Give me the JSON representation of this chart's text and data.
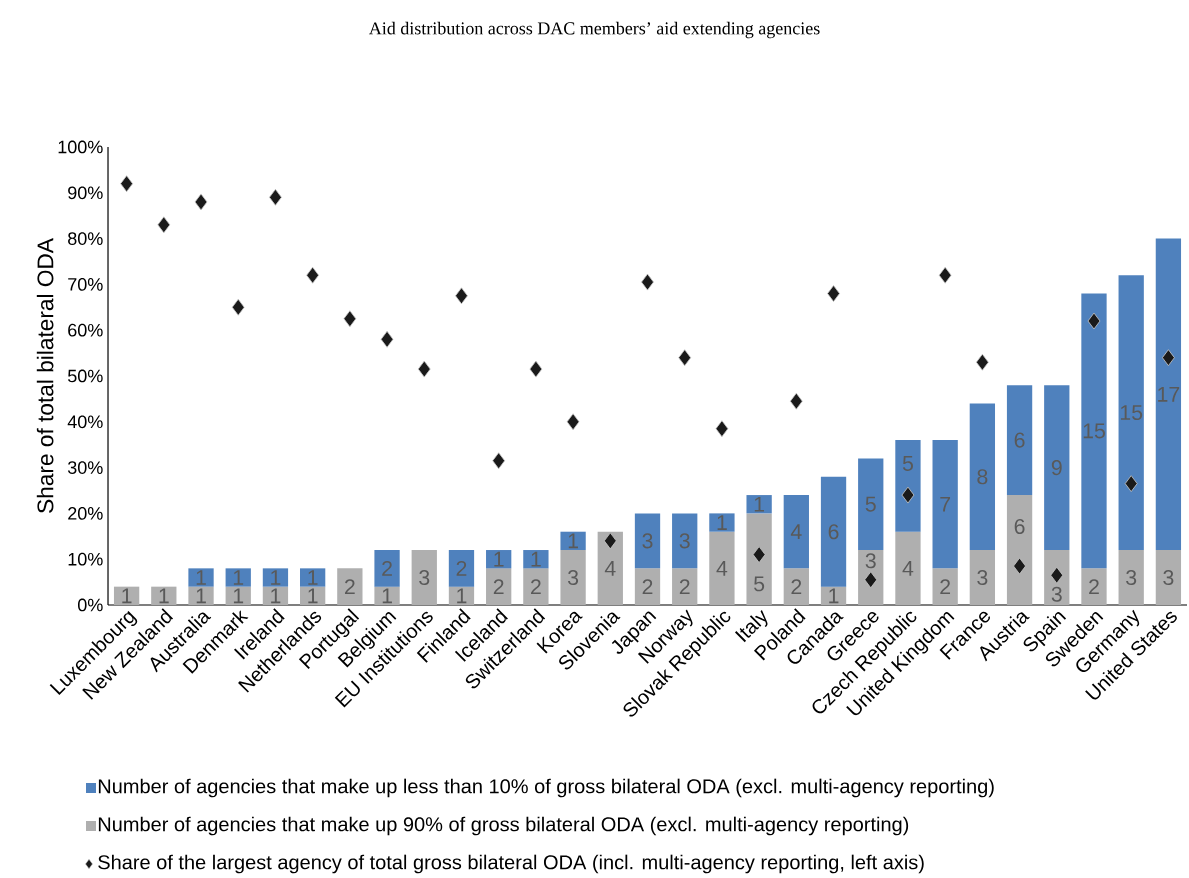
{
  "chart_data": {
    "type": "bar",
    "stacked": true,
    "title": "Aid distribution across DAC members’ aid extending agencies",
    "ylabel": "Share of total bilateral ODA",
    "categories": [
      "Luxembourg",
      "New Zealand",
      "Australia",
      "Denmark",
      "Ireland",
      "Netherlands",
      "Portugal",
      "Belgium",
      "EU Institutions",
      "Finland",
      "Iceland",
      "Switzerland",
      "Korea",
      "Slovenia",
      "Japan",
      "Norway",
      "Slovak Republic",
      "Italy",
      "Poland",
      "Canada",
      "Greece",
      "Czech Republic",
      "United Kingdom",
      "France",
      "Austria",
      "Spain",
      "Sweden",
      "Germany",
      "United States"
    ],
    "ylim": [
      0,
      100
    ],
    "yticks": [
      {
        "value": 0,
        "label": "0%"
      },
      {
        "value": 10,
        "label": "10%"
      },
      {
        "value": 20,
        "label": "20%"
      },
      {
        "value": 30,
        "label": "30%"
      },
      {
        "value": 40,
        "label": "40%"
      },
      {
        "value": 50,
        "label": "50%"
      },
      {
        "value": 60,
        "label": "60%"
      },
      {
        "value": 70,
        "label": "70%"
      },
      {
        "value": 80,
        "label": "80%"
      },
      {
        "value": 90,
        "label": "90%"
      },
      {
        "value": 100,
        "label": "100%"
      }
    ],
    "legend": "bottom",
    "y2lim": [
      0,
      25
    ],
    "series": [
      {
        "name": "Number of agencies that make up 90% of gross bilateral ODA (excl. multi-agency reporting)",
        "color": "#afafaf",
        "axis": "y2",
        "values": [
          1,
          1,
          1,
          1,
          1,
          1,
          2,
          1,
          3,
          1,
          2,
          2,
          3,
          4,
          2,
          2,
          4,
          5,
          2,
          1,
          3,
          4,
          2,
          3,
          6,
          3,
          2,
          3,
          3
        ],
        "value_labels": [
          "1",
          "1",
          "1",
          "1",
          "1",
          "1",
          "2",
          "1",
          "3",
          "1",
          "2",
          "2",
          "3",
          "4",
          "2",
          "2",
          "4",
          "5",
          "2",
          "1",
          "3",
          "4",
          "2",
          "3",
          "6",
          "3",
          "2",
          "3",
          "3"
        ]
      },
      {
        "name": "Number of agencies that make up less than 10% of gross bilateral ODA (excl. multi-agency reporting)",
        "color": "#4f81bd",
        "axis": "y2",
        "values": [
          null,
          null,
          1,
          1,
          1,
          1,
          null,
          2,
          null,
          2,
          1,
          1,
          1,
          null,
          3,
          3,
          1,
          1,
          4,
          6,
          5,
          5,
          7,
          8,
          6,
          9,
          15,
          15,
          17
        ],
        "value_labels": [
          null,
          null,
          "1",
          "1",
          "1",
          "1",
          null,
          "2",
          null,
          "2",
          "1",
          "1",
          "1",
          null,
          "3",
          "3",
          "1",
          "1",
          "4",
          "6",
          "5",
          "5",
          "7",
          "8",
          "6",
          "9",
          "15",
          "15",
          "17"
        ]
      },
      {
        "name": "Share of the largest agency of total gross bilateral ODA (incl. multi-agency reporting, left axis)",
        "type": "scatter",
        "marker": "diamond",
        "color": "#1a1a1a",
        "x": [
          "Luxembourg",
          "New Zealand",
          "Australia",
          "Denmark",
          "Ireland",
          "Netherlands",
          "Portugal",
          "Belgium",
          "EU Institutions",
          "Finland",
          "Iceland",
          "Switzerland",
          "Korea",
          "Slovenia",
          "Japan",
          "Norway",
          "Slovak Republic",
          "Italy",
          "Poland",
          "Canada",
          "Greece",
          "Czech Republic",
          "United Kingdom",
          "France",
          "Austria",
          "Spain",
          "Sweden",
          "Germany",
          "United States"
        ],
        "values": [
          92,
          83,
          88,
          65,
          89,
          72,
          62.5,
          58,
          51.5,
          67.5,
          31.5,
          51.5,
          40,
          14,
          70.5,
          54,
          38.5,
          11,
          44.5,
          68,
          5.5,
          24,
          72,
          53,
          8.5,
          6.5,
          62,
          26.5,
          54
        ]
      }
    ]
  }
}
